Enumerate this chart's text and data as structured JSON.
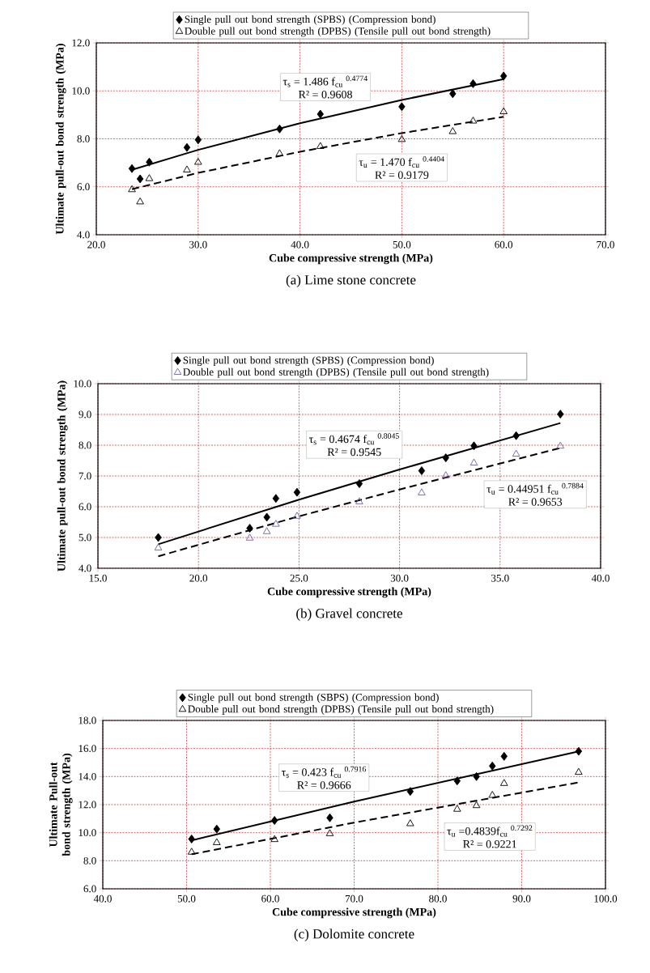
{
  "chart_data": [
    {
      "type": "scatter",
      "title": "(a) Lime stone concrete",
      "xlabel": "Cube compressive strength (MPa)",
      "ylabel": "Ultimate pull-out bond strength (MPa)",
      "xlim": [
        20,
        70
      ],
      "ylim": [
        4,
        12
      ],
      "xticks": [
        {
          "value": 20,
          "label": "20.0"
        },
        {
          "value": 30,
          "label": "30.0"
        },
        {
          "value": 40,
          "label": "40.0"
        },
        {
          "value": 50,
          "label": "50.0"
        },
        {
          "value": 60,
          "label": "60.0"
        },
        {
          "value": 70,
          "label": "70.0"
        }
      ],
      "yticks": [
        {
          "value": 4,
          "label": "4.0"
        },
        {
          "value": 6,
          "label": "6.0"
        },
        {
          "value": 8,
          "label": "8.0"
        },
        {
          "value": 10,
          "label": "10.0"
        },
        {
          "value": 12,
          "label": "12.0"
        }
      ],
      "grid": true,
      "legend": "top",
      "annotations": [
        "τ$_{s}$ = 1.486 f$_{cu}$ $^{0.4774}$",
        "R² = 0.9608",
        "τ$_{u}$ = 1.470 f$_{cu}$ $^{0.4404}$",
        "R² = 0.9179"
      ],
      "series": [
        {
          "name": "Single pull out bond strength (SPBS) (Compression bond)",
          "type": "scatter",
          "marker": "diamond",
          "color": "#000000",
          "x": [
            23.5,
            24.3,
            25.2,
            28.9,
            30.0,
            38.0,
            42.0,
            50.0,
            55.0,
            57.0,
            60.0
          ],
          "values": [
            6.76,
            6.33,
            7.03,
            7.64,
            7.96,
            8.41,
            9.03,
            9.34,
            9.88,
            10.3,
            10.62
          ]
        },
        {
          "name": "Double pull out bond strength (DPBS) (Tensile pull out bond strength)",
          "type": "scatter",
          "marker": "triangle",
          "color": "#000000",
          "x": [
            23.5,
            24.3,
            25.2,
            28.9,
            30.0,
            38.0,
            42.0,
            50.0,
            55.0,
            57.0,
            60.0
          ],
          "values": [
            5.88,
            5.37,
            6.34,
            6.7,
            7.02,
            7.38,
            7.68,
            7.97,
            8.3,
            8.74,
            9.13
          ]
        },
        {
          "type": "line",
          "marker": "none",
          "line_style": "solid",
          "color": "#000000",
          "x": [
            23.5,
            30,
            40,
            50,
            60
          ],
          "values": [
            6.71,
            7.54,
            8.65,
            9.62,
            10.49
          ]
        },
        {
          "type": "line",
          "marker": "none",
          "line_style": "dashed",
          "color": "#000000",
          "x": [
            23.5,
            30,
            40,
            50,
            60
          ],
          "values": [
            5.9,
            6.58,
            7.46,
            8.24,
            8.92
          ]
        }
      ]
    },
    {
      "type": "scatter",
      "title": "(b) Gravel concrete",
      "xlabel": "Cube compressive strength (MPa)",
      "ylabel": "Ultimate pull-out bond strength (MPa)",
      "xlim": [
        15,
        40
      ],
      "ylim": [
        4,
        10
      ],
      "xticks": [
        {
          "value": 15,
          "label": "15.0"
        },
        {
          "value": 20,
          "label": "20.0"
        },
        {
          "value": 25,
          "label": "25.0"
        },
        {
          "value": 30,
          "label": "30.0"
        },
        {
          "value": 35,
          "label": "35.0"
        },
        {
          "value": 40,
          "label": "40.0"
        }
      ],
      "yticks": [
        {
          "value": 4,
          "label": "4.0"
        },
        {
          "value": 5,
          "label": "5.0"
        },
        {
          "value": 6,
          "label": "6.0"
        },
        {
          "value": 7,
          "label": "7.0"
        },
        {
          "value": 8,
          "label": "8.0"
        },
        {
          "value": 9,
          "label": "9.0"
        },
        {
          "value": 10,
          "label": "10.0"
        }
      ],
      "grid": true,
      "legend": "top",
      "annotations": [
        "τ$_{s}$ = 0.4674 f$_{cu}$ $^{0.8045}$",
        "R² = 0.9545",
        "τ$_{u}$ = 0.44951 f$_{cu}$ $^{0.7884}$",
        "R² = 0.9653"
      ],
      "series": [
        {
          "name": "Single pull out bond strength (SPBS) (Compression bond)",
          "type": "scatter",
          "marker": "diamond",
          "color": "#000000",
          "x": [
            18.0,
            22.55,
            23.4,
            23.85,
            24.9,
            28.0,
            31.1,
            32.3,
            33.7,
            35.8,
            38.0
          ],
          "values": [
            5.0,
            5.3,
            5.66,
            6.27,
            6.47,
            6.75,
            7.17,
            7.59,
            7.98,
            8.31,
            9.01
          ]
        },
        {
          "name": "Double pull out bond strength (DPBS) (Tensile pull out bond strength)",
          "type": "scatter",
          "marker": "triangle",
          "color": "#7060a0",
          "x": [
            18.0,
            22.55,
            23.4,
            23.85,
            24.9,
            28.0,
            31.1,
            32.3,
            33.7,
            35.8,
            38.0
          ],
          "values": [
            4.66,
            4.98,
            5.19,
            5.43,
            5.69,
            6.16,
            6.45,
            7.01,
            7.42,
            7.71,
            7.97
          ]
        },
        {
          "type": "line",
          "marker": "none",
          "line_style": "solid",
          "color": "#000000",
          "x": [
            18,
            25,
            30,
            38
          ],
          "values": [
            4.78,
            6.23,
            7.21,
            8.72
          ]
        },
        {
          "type": "line",
          "marker": "none",
          "line_style": "dashed",
          "color": "#000000",
          "x": [
            18,
            25,
            30,
            38
          ],
          "values": [
            4.39,
            5.69,
            6.56,
            7.91
          ]
        }
      ]
    },
    {
      "type": "scatter",
      "title": "(c) Dolomite concrete",
      "xlabel": "Cube compressive strength (MPa)",
      "ylabel": "Ultimate Pull-out bond strength (MPa)",
      "xlim": [
        40,
        100
      ],
      "ylim": [
        6,
        18
      ],
      "xticks": [
        {
          "value": 40,
          "label": "40.0"
        },
        {
          "value": 50,
          "label": "50.0"
        },
        {
          "value": 60,
          "label": "60.0"
        },
        {
          "value": 70,
          "label": "70.0"
        },
        {
          "value": 80,
          "label": "80.0"
        },
        {
          "value": 90,
          "label": "90.0"
        },
        {
          "value": 100,
          "label": "100.0"
        }
      ],
      "yticks": [
        {
          "value": 6,
          "label": "6.0"
        },
        {
          "value": 8,
          "label": "8.0"
        },
        {
          "value": 10,
          "label": "10.0"
        },
        {
          "value": 12,
          "label": "12.0"
        },
        {
          "value": 14,
          "label": "14.0"
        },
        {
          "value": 16,
          "label": "16.0"
        },
        {
          "value": 18,
          "label": "18.0"
        }
      ],
      "grid": true,
      "legend": "top",
      "annotations": [
        "τ$_{s}$ = 0.423 f$_{cu}$ $^{0.7916}$",
        "R² = 0.9666",
        "τ$_{u}$ =0.4839f$_{cu}$ $^{0.7292}$",
        "R² = 0.9221"
      ],
      "series": [
        {
          "name": "Single pull out bond strength (SBPS) (Compression bond)",
          "type": "scatter",
          "marker": "diamond",
          "color": "#000000",
          "x": [
            50.6,
            53.6,
            60.5,
            67.1,
            76.7,
            82.3,
            84.6,
            86.5,
            87.9,
            96.8
          ],
          "values": [
            9.55,
            10.26,
            10.87,
            11.06,
            12.94,
            13.69,
            14.0,
            14.75,
            15.44,
            15.8
          ]
        },
        {
          "name": "Double pull out bond strength (DPBS) (Tensile pull out bond strength)",
          "type": "scatter",
          "marker": "triangle",
          "color": "#000000",
          "x": [
            50.6,
            53.6,
            60.5,
            67.1,
            76.7,
            82.3,
            84.6,
            86.5,
            87.9,
            96.8
          ],
          "values": [
            8.61,
            9.29,
            9.51,
            9.93,
            10.64,
            11.67,
            11.93,
            12.66,
            13.51,
            14.3
          ]
        },
        {
          "type": "line",
          "marker": "none",
          "line_style": "solid",
          "color": "#000000",
          "x": [
            50.6,
            70,
            96.8
          ],
          "values": [
            9.45,
            12.22,
            15.79
          ]
        },
        {
          "type": "line",
          "marker": "none",
          "line_style": "dashed",
          "color": "#000000",
          "x": [
            50.6,
            70,
            96.8
          ],
          "values": [
            8.46,
            10.72,
            13.58
          ]
        }
      ]
    }
  ]
}
